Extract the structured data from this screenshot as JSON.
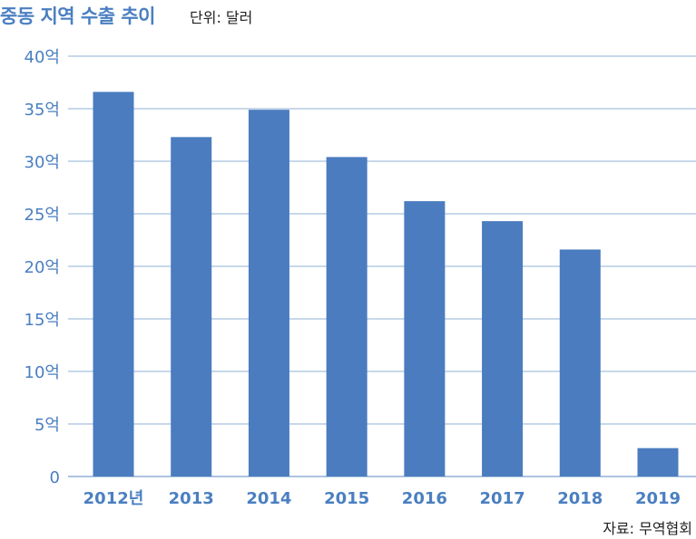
{
  "header": {
    "title": "중동 지역 수출 추이",
    "unit": "단위: 달러"
  },
  "footer": {
    "source": "자료: 무역협회"
  },
  "colors": {
    "bar": "#4a7cbf",
    "axis_text": "#4a7fc1",
    "grid": "#8fb0d6"
  },
  "chart_data": {
    "type": "bar",
    "title": "중동 지역 수출 추이",
    "unit": "단위: 달러",
    "xlabel": "",
    "ylabel": "",
    "categories": [
      "2012년",
      "2013",
      "2014",
      "2015",
      "2016",
      "2017",
      "2018",
      "2019"
    ],
    "values": [
      36.6,
      32.3,
      34.9,
      30.4,
      26.2,
      24.3,
      21.6,
      2.7
    ],
    "ylim": [
      0,
      40
    ],
    "yticks": [
      0,
      5,
      10,
      15,
      20,
      25,
      30,
      35,
      40
    ],
    "ytick_labels": [
      "0",
      "5억",
      "10억",
      "15억",
      "20억",
      "25억",
      "30억",
      "35억",
      "40억"
    ],
    "grid": true,
    "legend": "none"
  }
}
